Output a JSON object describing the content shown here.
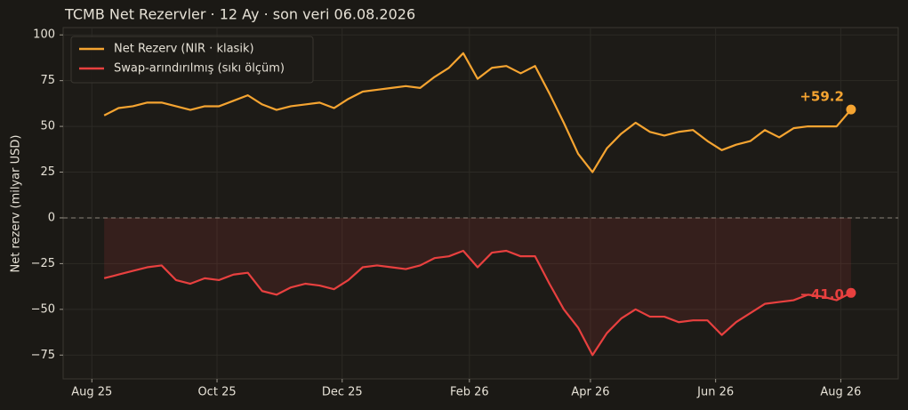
{
  "chart_data": {
    "type": "line",
    "title": "TCMB Net Rezervler · 12 Ay · son veri 06.08.2026",
    "y_label": "Net rezerv (milyar USD)",
    "x": [
      "2025-08-07",
      "2025-08-14",
      "2025-08-21",
      "2025-08-28",
      "2025-09-04",
      "2025-09-11",
      "2025-09-18",
      "2025-09-25",
      "2025-10-02",
      "2025-10-09",
      "2025-10-16",
      "2025-10-23",
      "2025-10-30",
      "2025-11-06",
      "2025-11-13",
      "2025-11-20",
      "2025-11-27",
      "2025-12-04",
      "2025-12-11",
      "2025-12-18",
      "2025-12-25",
      "2026-01-01",
      "2026-01-08",
      "2026-01-15",
      "2026-01-22",
      "2026-01-29",
      "2026-02-05",
      "2026-02-12",
      "2026-02-19",
      "2026-02-26",
      "2026-03-05",
      "2026-03-12",
      "2026-03-19",
      "2026-03-26",
      "2026-04-02",
      "2026-04-09",
      "2026-04-16",
      "2026-04-23",
      "2026-04-30",
      "2026-05-07",
      "2026-05-14",
      "2026-05-21",
      "2026-05-28",
      "2026-06-04",
      "2026-06-11",
      "2026-06-18",
      "2026-06-25",
      "2026-07-02",
      "2026-07-09",
      "2026-07-16",
      "2026-07-23",
      "2026-07-30",
      "2026-08-06"
    ],
    "series": [
      {
        "name": "Net Rezerv (NIR · klasik)",
        "color": "#f5a431",
        "values": [
          56,
          60,
          61,
          63,
          63,
          61,
          59,
          61,
          61,
          64,
          67,
          62,
          59,
          61,
          62,
          63,
          60,
          65,
          69,
          70,
          71,
          72,
          71,
          77,
          82,
          90,
          76,
          82,
          83,
          79,
          83,
          68,
          52,
          35,
          25,
          38,
          46,
          52,
          47,
          45,
          47,
          48,
          42,
          37,
          40,
          42,
          48,
          44,
          49,
          50,
          50,
          50,
          59.2
        ],
        "value_labels": [
          null,
          null,
          null,
          null,
          null,
          null,
          null,
          null,
          null,
          null,
          null,
          null,
          null,
          null,
          null,
          null,
          null,
          null,
          null,
          null,
          null,
          null,
          null,
          null,
          null,
          null,
          null,
          null,
          null,
          null,
          null,
          null,
          null,
          null,
          null,
          null,
          null,
          null,
          null,
          null,
          null,
          null,
          null,
          null,
          null,
          null,
          null,
          null,
          null,
          null,
          null,
          null,
          "+59.2"
        ]
      },
      {
        "name": "Swap-arındırılmış (sıkı ölçüm)",
        "color": "#e8403f",
        "values": [
          -33,
          -31,
          -29,
          -27,
          -26,
          -34,
          -36,
          -33,
          -34,
          -31,
          -30,
          -40,
          -42,
          -38,
          -36,
          -37,
          -39,
          -34,
          -27,
          -26,
          -27,
          -28,
          -26,
          -22,
          -21,
          -18,
          -27,
          -19,
          -18,
          -21,
          -21,
          -36,
          -50,
          -60,
          -75,
          -63,
          -55,
          -50,
          -54,
          -54,
          -57,
          -56,
          -56,
          -64,
          -57,
          -52,
          -47,
          -46,
          -45,
          -42,
          -43,
          -45,
          -41.0
        ],
        "value_labels": [
          null,
          null,
          null,
          null,
          null,
          null,
          null,
          null,
          null,
          null,
          null,
          null,
          null,
          null,
          null,
          null,
          null,
          null,
          null,
          null,
          null,
          null,
          null,
          null,
          null,
          null,
          null,
          null,
          null,
          null,
          null,
          null,
          null,
          null,
          null,
          null,
          null,
          null,
          null,
          null,
          null,
          null,
          null,
          null,
          null,
          null,
          null,
          null,
          null,
          null,
          null,
          null,
          "−41.0"
        ]
      }
    ],
    "xlim": [
      "2025-07-18",
      "2026-08-29"
    ],
    "xticks": [
      {
        "value": "2025-08-01",
        "label": "Aug 25"
      },
      {
        "value": "2025-10-01",
        "label": "Oct 25"
      },
      {
        "value": "2025-12-01",
        "label": "Dec 25"
      },
      {
        "value": "2026-02-01",
        "label": "Feb 26"
      },
      {
        "value": "2026-04-01",
        "label": "Apr 26"
      },
      {
        "value": "2026-06-01",
        "label": "Jun 26"
      },
      {
        "value": "2026-08-01",
        "label": "Aug 26"
      }
    ],
    "ylim": [
      -88,
      104
    ],
    "yticks": [
      {
        "value": -75,
        "label": "−75"
      },
      {
        "value": -50,
        "label": "−50"
      },
      {
        "value": -25,
        "label": "−25"
      },
      0,
      25,
      50,
      75,
      100
    ],
    "grid": true,
    "legend": "upper left"
  }
}
